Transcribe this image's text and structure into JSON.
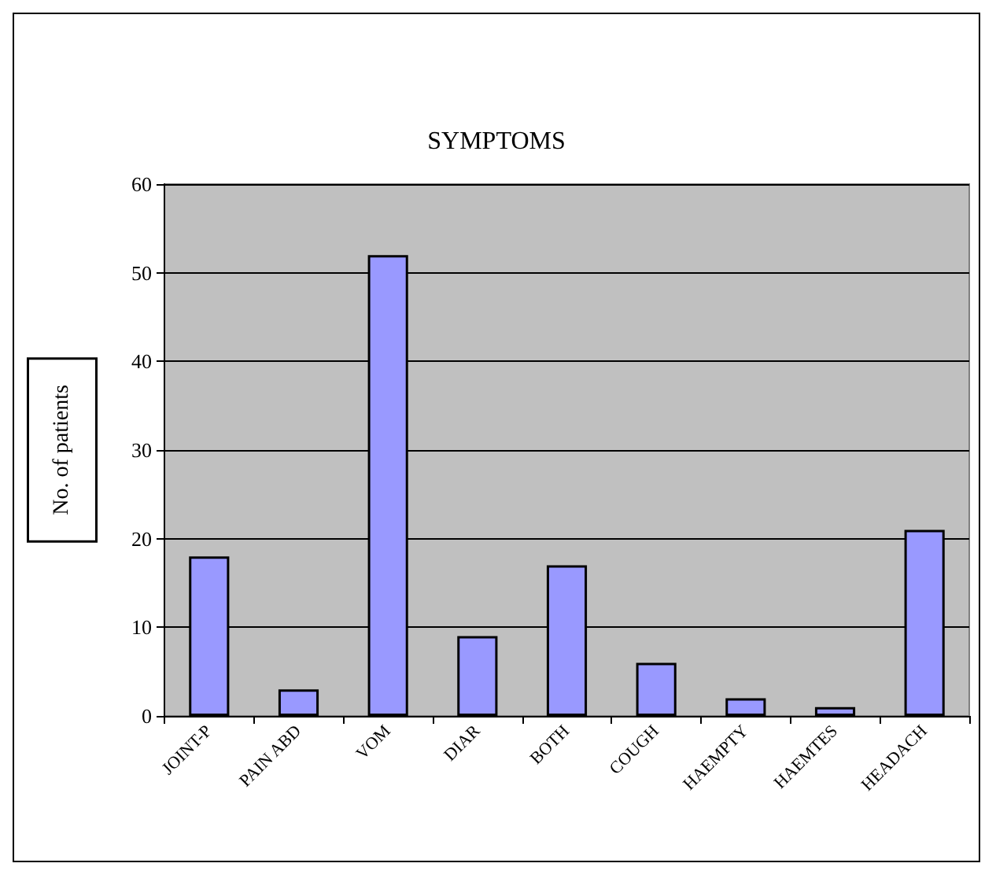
{
  "chart_data": {
    "type": "bar",
    "title": "SYMPTOMS",
    "ylabel": "No. of patients",
    "categories": [
      "JOINT-P",
      "PAIN ABD",
      "VOM",
      "DIAR",
      "BOTH",
      "COUGH",
      "HAEMPTY",
      "HAEMTES",
      "HEADACH"
    ],
    "values": [
      18,
      3,
      52,
      9,
      17,
      6,
      2,
      1,
      21
    ],
    "color": "#9999ff",
    "ylim": [
      0,
      60
    ],
    "yticks": [
      0,
      10,
      20,
      30,
      40,
      50,
      60
    ],
    "grid": "y"
  }
}
